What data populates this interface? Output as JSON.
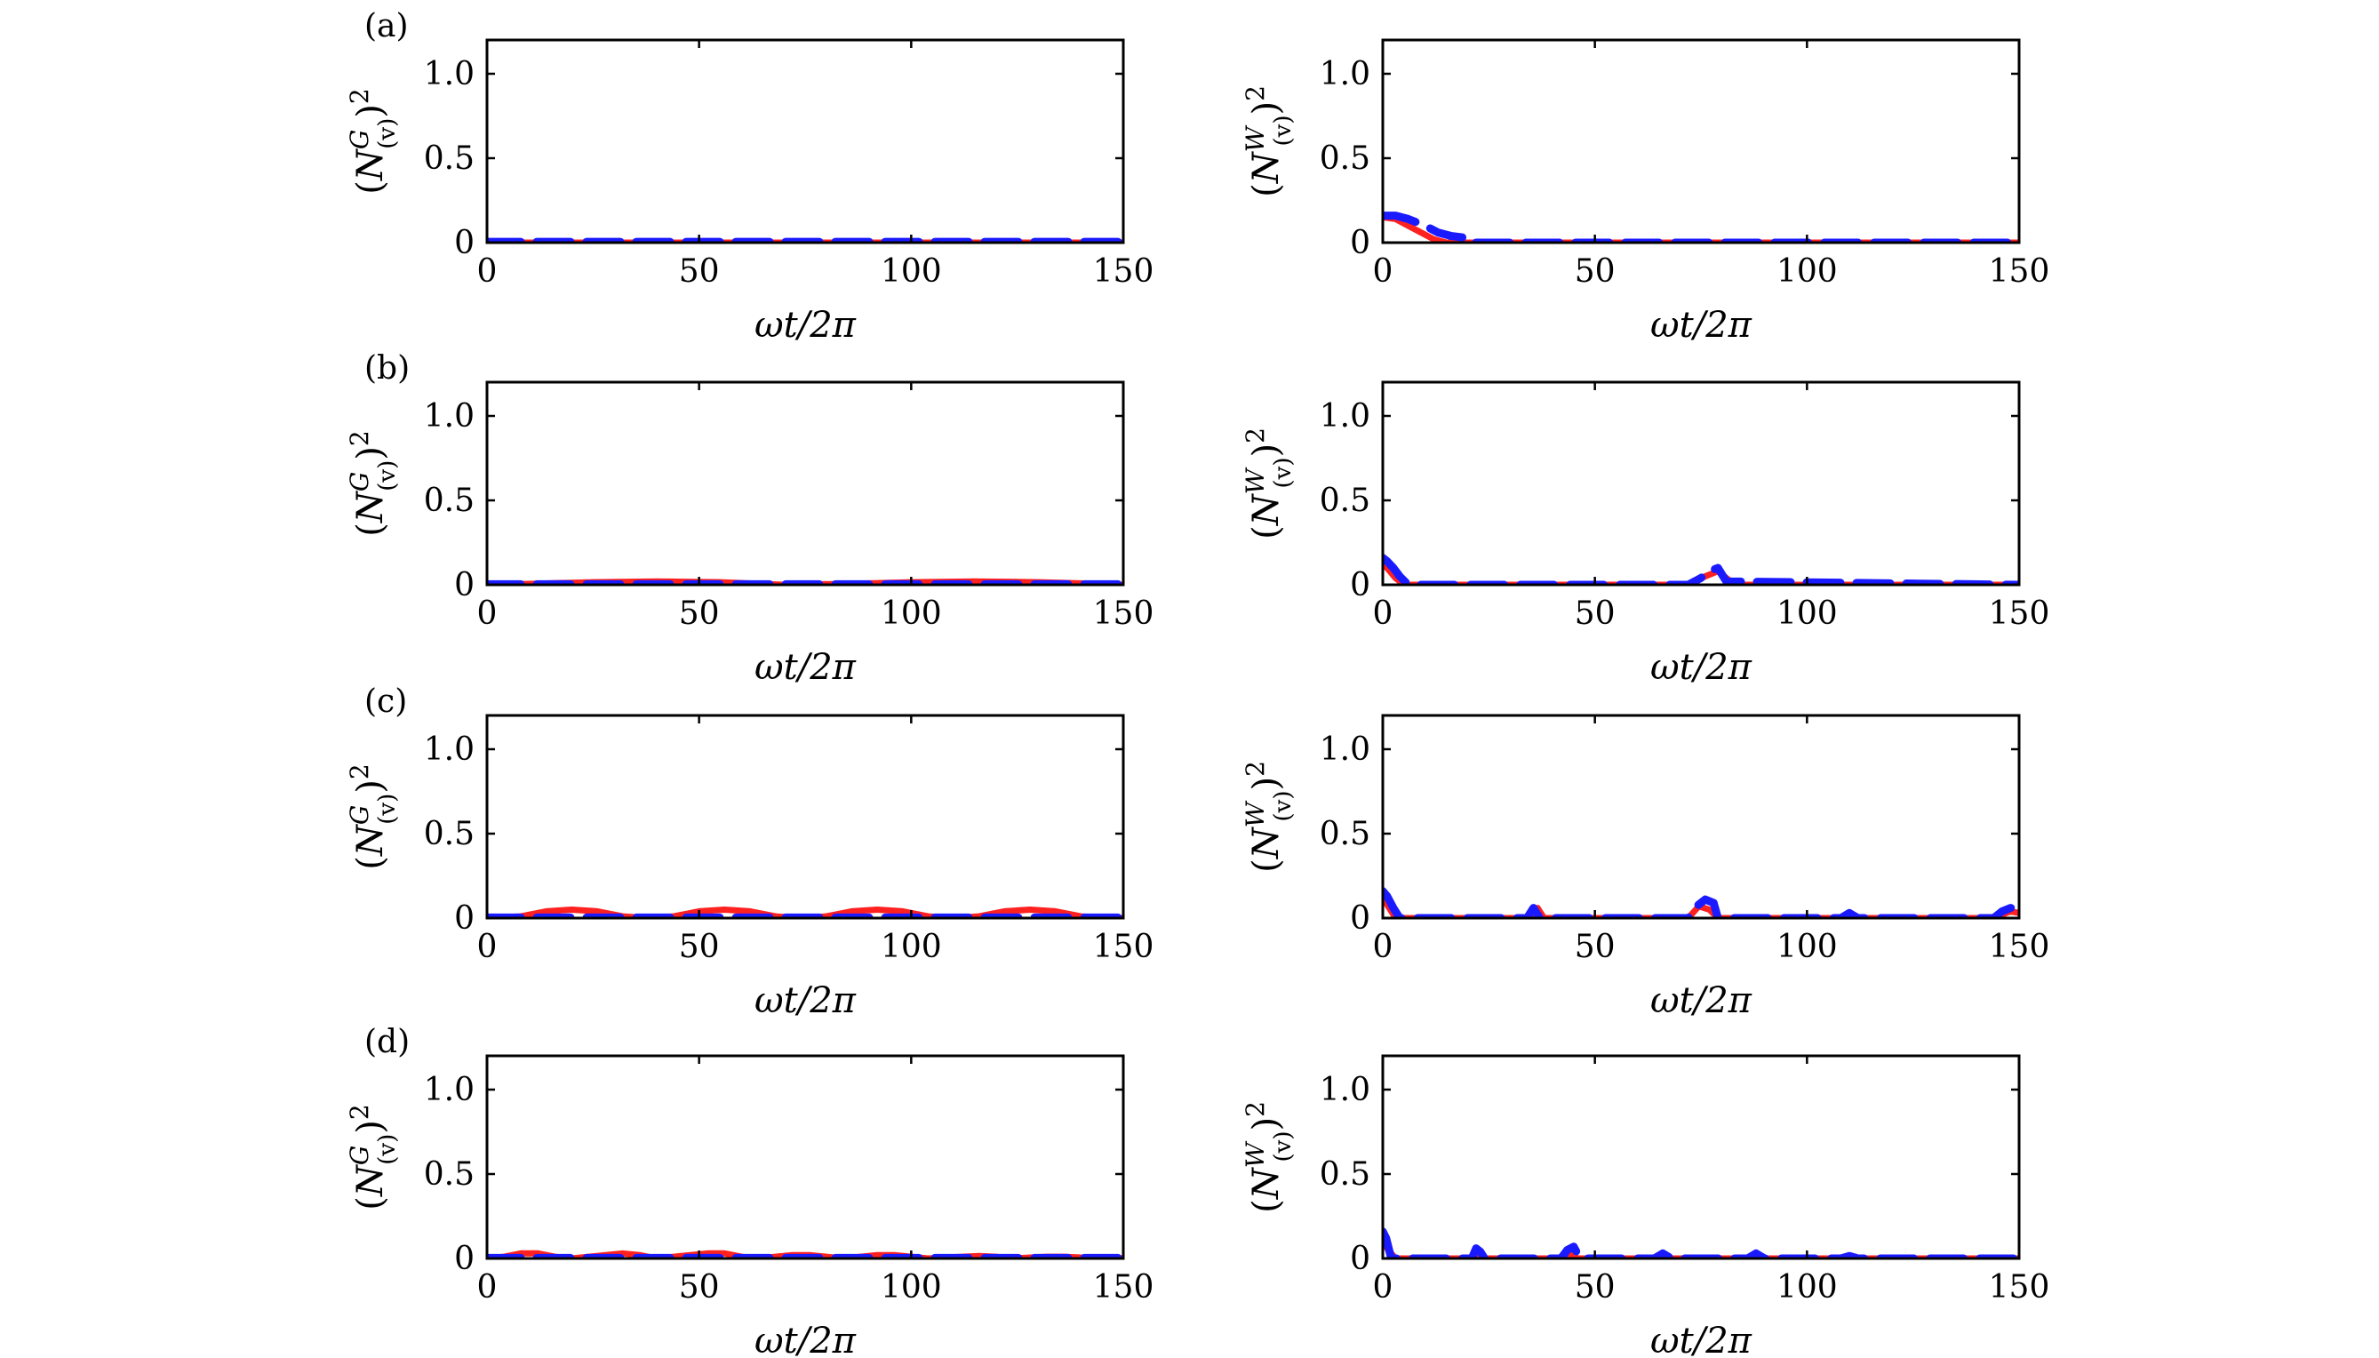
{
  "colors": {
    "red": "#ff2020",
    "blue": "#1a1aff",
    "axis": "#000000"
  },
  "chart_data": [
    {
      "type": "line",
      "panel_label": "(a)",
      "ylabel_main": "N",
      "ylabel_sup": "G",
      "ylabel_sub": "(v)",
      "xlabel": "ωt/2π",
      "xlim": [
        0,
        150
      ],
      "ylim": [
        0,
        1.2
      ],
      "xticks": [
        "0",
        "50",
        "100",
        "150"
      ],
      "yticks": [
        "0",
        "0.5",
        "1.0"
      ],
      "series": [
        {
          "name": "red",
          "color": "#ff2020",
          "x": [
            0,
            150
          ],
          "y": [
            0,
            0
          ]
        },
        {
          "name": "blue",
          "color": "#1a1aff",
          "x": [
            0,
            150
          ],
          "y": [
            0.005,
            0.005
          ]
        }
      ]
    },
    {
      "type": "line",
      "panel_label": "",
      "ylabel_main": "N",
      "ylabel_sup": "W",
      "ylabel_sub": "(v)",
      "xlabel": "ωt/2π",
      "xlim": [
        0,
        150
      ],
      "ylim": [
        0,
        1.2
      ],
      "xticks": [
        "0",
        "50",
        "100",
        "150"
      ],
      "yticks": [
        "0",
        "0.5",
        "1.0"
      ],
      "series": [
        {
          "name": "red",
          "color": "#ff2020",
          "x": [
            0,
            3,
            6,
            9,
            12,
            15,
            150
          ],
          "y": [
            0.15,
            0.14,
            0.1,
            0.06,
            0.02,
            0,
            0
          ]
        },
        {
          "name": "blue",
          "color": "#1a1aff",
          "x": [
            0,
            3,
            6,
            8,
            10,
            13,
            16,
            19,
            20,
            150
          ],
          "y": [
            0.16,
            0.16,
            0.14,
            0.12,
            0.1,
            0.06,
            0.04,
            0.03,
            0,
            0
          ]
        }
      ]
    },
    {
      "type": "line",
      "panel_label": "(b)",
      "ylabel_main": "N",
      "ylabel_sup": "G",
      "ylabel_sub": "(v)",
      "xlabel": "ωt/2π",
      "xlim": [
        0,
        150
      ],
      "ylim": [
        0,
        1.2
      ],
      "xticks": [
        "0",
        "50",
        "100",
        "150"
      ],
      "yticks": [
        "0",
        "0.5",
        "1.0"
      ],
      "series": [
        {
          "name": "red",
          "color": "#ff2020",
          "x": [
            0,
            10,
            25,
            40,
            55,
            70,
            85,
            100,
            115,
            130,
            145,
            150
          ],
          "y": [
            0,
            0.005,
            0.015,
            0.02,
            0.015,
            0,
            0.005,
            0.015,
            0.02,
            0.015,
            0.005,
            0
          ]
        },
        {
          "name": "blue",
          "color": "#1a1aff",
          "x": [
            0,
            150
          ],
          "y": [
            0.003,
            0.003
          ]
        }
      ]
    },
    {
      "type": "line",
      "panel_label": "",
      "ylabel_main": "N",
      "ylabel_sup": "W",
      "ylabel_sub": "(v)",
      "xlabel": "ωt/2π",
      "xlim": [
        0,
        150
      ],
      "ylim": [
        0,
        1.2
      ],
      "xticks": [
        "0",
        "50",
        "100",
        "150"
      ],
      "yticks": [
        "0",
        "0.5",
        "1.0"
      ],
      "series": [
        {
          "name": "red",
          "color": "#ff2020",
          "x": [
            0,
            1,
            3,
            5,
            72,
            76,
            79,
            81,
            83,
            150
          ],
          "y": [
            0.12,
            0.1,
            0.04,
            0,
            0,
            0.05,
            0.08,
            0.04,
            0,
            0
          ]
        },
        {
          "name": "blue",
          "color": "#1a1aff",
          "x": [
            0,
            1,
            2.5,
            4,
            6,
            72,
            75,
            77,
            79,
            81,
            150
          ],
          "y": [
            0.16,
            0.14,
            0.1,
            0.05,
            0,
            0,
            0.04,
            0.08,
            0.1,
            0.02,
            0
          ]
        }
      ]
    },
    {
      "type": "line",
      "panel_label": "(c)",
      "ylabel_main": "N",
      "ylabel_sup": "G",
      "ylabel_sub": "(v)",
      "xlabel": "ωt/2π",
      "xlim": [
        0,
        150
      ],
      "ylim": [
        0,
        1.2
      ],
      "xticks": [
        "0",
        "50",
        "100",
        "150"
      ],
      "yticks": [
        "0",
        "0.5",
        "1.0"
      ],
      "series": [
        {
          "name": "red",
          "color": "#ff2020",
          "x": [
            0,
            8,
            14,
            20,
            26,
            32,
            38,
            44,
            50,
            56,
            62,
            68,
            74,
            80,
            86,
            92,
            98,
            104,
            110,
            116,
            122,
            128,
            134,
            140,
            146,
            150
          ],
          "y": [
            0,
            0.01,
            0.04,
            0.05,
            0.04,
            0.01,
            0,
            0.01,
            0.04,
            0.05,
            0.04,
            0.01,
            0,
            0.01,
            0.04,
            0.05,
            0.04,
            0.01,
            0,
            0.01,
            0.04,
            0.05,
            0.04,
            0.01,
            0,
            0
          ]
        },
        {
          "name": "blue",
          "color": "#1a1aff",
          "x": [
            0,
            150
          ],
          "y": [
            0.003,
            0.003
          ]
        }
      ]
    },
    {
      "type": "line",
      "panel_label": "",
      "ylabel_main": "N",
      "ylabel_sup": "W",
      "ylabel_sub": "(v)",
      "xlabel": "ωt/2π",
      "xlim": [
        0,
        150
      ],
      "ylim": [
        0,
        1.2
      ],
      "xticks": [
        "0",
        "50",
        "100",
        "150"
      ],
      "yticks": [
        "0",
        "0.5",
        "1.0"
      ],
      "series": [
        {
          "name": "red",
          "color": "#ff2020",
          "x": [
            0,
            1,
            3,
            35,
            36.5,
            38,
            72,
            74.5,
            77,
            79,
            108,
            110,
            112,
            144,
            148,
            150
          ],
          "y": [
            0.12,
            0.08,
            0,
            0,
            0.06,
            0,
            0,
            0.07,
            0.05,
            0,
            0,
            0.02,
            0,
            0,
            0.04,
            0.03
          ]
        },
        {
          "name": "blue",
          "color": "#1a1aff",
          "x": [
            0,
            1,
            2.5,
            4,
            34,
            35.5,
            37,
            72,
            74,
            76,
            78,
            79,
            108,
            110,
            112,
            144,
            146,
            148,
            150
          ],
          "y": [
            0.16,
            0.13,
            0.06,
            0,
            0,
            0.06,
            0,
            0,
            0.07,
            0.11,
            0.09,
            0,
            0,
            0.03,
            0,
            0,
            0.04,
            0.06,
            0.06
          ]
        }
      ]
    },
    {
      "type": "line",
      "panel_label": "(d)",
      "ylabel_main": "N",
      "ylabel_sup": "G",
      "ylabel_sub": "(v)",
      "xlabel": "ωt/2π",
      "xlim": [
        0,
        150
      ],
      "ylim": [
        0,
        1.2
      ],
      "xticks": [
        "0",
        "50",
        "100",
        "150"
      ],
      "yticks": [
        "0",
        "0.5",
        "1.0"
      ],
      "series": [
        {
          "name": "red",
          "color": "#ff2020",
          "x": [
            0,
            4,
            8,
            12,
            16,
            20,
            24,
            28,
            32,
            36,
            40,
            44,
            48,
            52,
            56,
            60,
            64,
            68,
            72,
            76,
            80,
            84,
            88,
            92,
            96,
            100,
            104,
            108,
            112,
            116,
            120,
            124,
            128,
            132,
            136,
            140,
            144,
            148,
            150
          ],
          "y": [
            0,
            0.01,
            0.03,
            0.03,
            0.01,
            0,
            0.01,
            0.02,
            0.03,
            0.02,
            0,
            0.01,
            0.02,
            0.03,
            0.03,
            0.01,
            0,
            0.01,
            0.02,
            0.02,
            0.01,
            0,
            0.01,
            0.02,
            0.02,
            0.01,
            0,
            0.005,
            0.01,
            0.015,
            0.01,
            0,
            0.005,
            0.01,
            0.01,
            0.005,
            0,
            0.005,
            0
          ]
        },
        {
          "name": "blue",
          "color": "#1a1aff",
          "x": [
            0,
            150
          ],
          "y": [
            0.003,
            0.003
          ]
        }
      ]
    },
    {
      "type": "line",
      "panel_label": "",
      "ylabel_main": "N",
      "ylabel_sup": "W",
      "ylabel_sub": "(v)",
      "xlabel": "ωt/2π",
      "xlim": [
        0,
        150
      ],
      "ylim": [
        0,
        1.2
      ],
      "xticks": [
        "0",
        "50",
        "100",
        "150"
      ],
      "yticks": [
        "0",
        "0.5",
        "1.0"
      ],
      "series": [
        {
          "name": "red",
          "color": "#ff2020",
          "x": [
            0,
            1,
            3,
            21,
            22.5,
            24,
            43,
            44.5,
            46,
            150
          ],
          "y": [
            0.1,
            0.06,
            0,
            0,
            0.02,
            0,
            0,
            0.02,
            0,
            0
          ]
        },
        {
          "name": "blue",
          "color": "#1a1aff",
          "x": [
            0,
            0.8,
            2,
            21,
            22,
            23,
            24,
            42,
            43.5,
            45,
            46.5,
            64,
            66,
            68,
            86,
            88,
            90,
            108,
            110,
            112,
            150
          ],
          "y": [
            0.16,
            0.12,
            0,
            0,
            0.06,
            0.04,
            0,
            0,
            0.05,
            0.07,
            0,
            0,
            0.03,
            0,
            0,
            0.03,
            0,
            0,
            0.015,
            0,
            0
          ]
        }
      ]
    }
  ]
}
